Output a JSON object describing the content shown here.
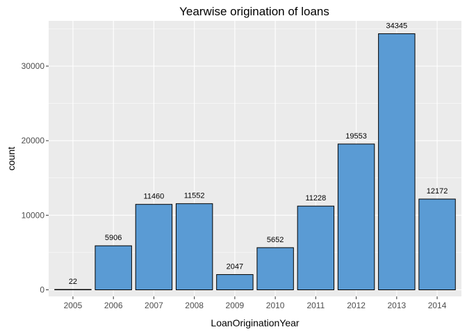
{
  "chart_data": {
    "type": "bar",
    "title": "Yearwise origination of loans",
    "xlabel": "LoanOriginationYear",
    "ylabel": "count",
    "categories": [
      "2005",
      "2006",
      "2007",
      "2008",
      "2009",
      "2010",
      "2011",
      "2012",
      "2013",
      "2014"
    ],
    "values": [
      22,
      5906,
      11460,
      11552,
      2047,
      5652,
      11228,
      19553,
      34345,
      12172
    ],
    "ylim": [
      0,
      36000
    ],
    "yticks": [
      0,
      10000,
      20000,
      30000
    ],
    "grid": true,
    "legend": "none",
    "colors": {
      "bar_fill": "#5a9bd4",
      "bar_outline": "#000000",
      "panel_background": "#ebebeb",
      "grid": "#ffffff"
    }
  }
}
